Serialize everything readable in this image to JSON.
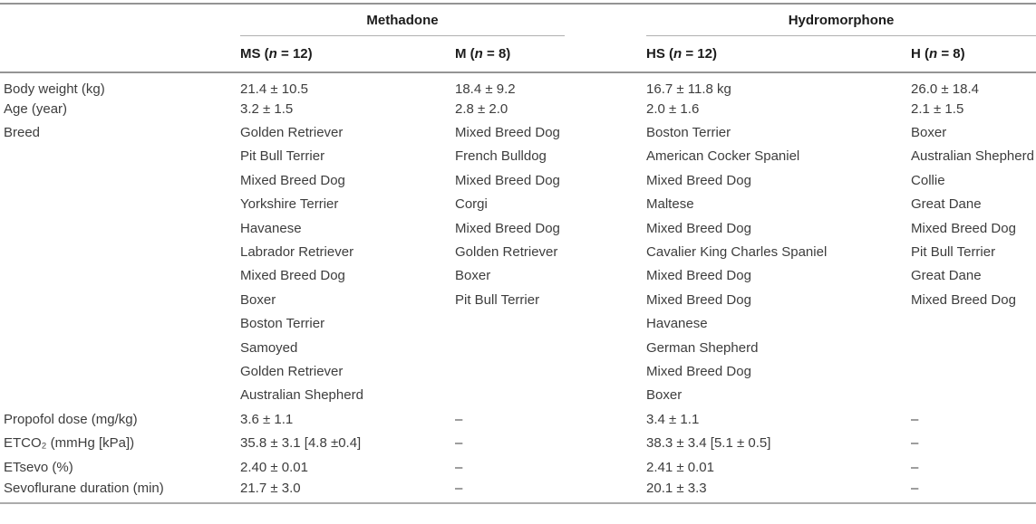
{
  "header": {
    "groups": [
      {
        "name": "Methadone"
      },
      {
        "name": "Hydromorphone"
      }
    ],
    "columns": [
      {
        "prefix": "MS (",
        "it": "n",
        "suffix": " = 12)"
      },
      {
        "prefix": "M (",
        "it": "n",
        "suffix": " = 8)"
      },
      {
        "prefix": "HS (",
        "it": "n",
        "suffix": " = 12)"
      },
      {
        "prefix": "H (",
        "it": "n",
        "suffix": " = 8)"
      }
    ]
  },
  "rows": [
    {
      "label": "Body weight (kg)",
      "values": [
        "21.4 ± 10.5",
        "18.4 ± 9.2",
        "16.7 ± 11.8 kg",
        "26.0 ± 18.4"
      ]
    },
    {
      "label": "Age (year)",
      "values": [
        "3.2 ± 1.5",
        "2.8 ± 2.0",
        "2.0 ± 1.6",
        "2.1 ± 1.5"
      ]
    },
    {
      "label": "Breed",
      "values": [
        "Golden Retriever",
        "Mixed Breed Dog",
        "Boston Terrier",
        "Boxer"
      ]
    },
    {
      "label": "",
      "values": [
        "Pit Bull Terrier",
        "French Bulldog",
        "American Cocker Spaniel",
        "Australian Shepherd"
      ]
    },
    {
      "label": "",
      "values": [
        "Mixed Breed Dog",
        "Mixed Breed Dog",
        "Mixed Breed Dog",
        "Collie"
      ]
    },
    {
      "label": "",
      "values": [
        "Yorkshire Terrier",
        "Corgi",
        "Maltese",
        "Great Dane"
      ]
    },
    {
      "label": "",
      "values": [
        "Havanese",
        "Mixed Breed Dog",
        "Mixed Breed Dog",
        "Mixed Breed Dog"
      ]
    },
    {
      "label": "",
      "values": [
        "Labrador Retriever",
        "Golden Retriever",
        "Cavalier King Charles Spaniel",
        "Pit Bull Terrier"
      ]
    },
    {
      "label": "",
      "values": [
        "Mixed Breed Dog",
        "Boxer",
        "Mixed Breed Dog",
        "Great Dane"
      ]
    },
    {
      "label": "",
      "values": [
        "Boxer",
        "Pit Bull Terrier",
        "Mixed Breed Dog",
        "Mixed Breed Dog"
      ]
    },
    {
      "label": "",
      "values": [
        "Boston Terrier",
        "",
        "Havanese",
        ""
      ]
    },
    {
      "label": "",
      "values": [
        "Samoyed",
        "",
        "German Shepherd",
        ""
      ]
    },
    {
      "label": "",
      "values": [
        "Golden Retriever",
        "",
        "Mixed Breed Dog",
        ""
      ]
    },
    {
      "label": "",
      "values": [
        "Australian Shepherd",
        "",
        "Boxer",
        ""
      ]
    },
    {
      "label": "Propofol dose (mg/kg)",
      "values": [
        "3.6 ± 1.1",
        "–",
        "3.4 ± 1.1",
        "–"
      ]
    },
    {
      "label": "ETCO₂ (mmHg [kPa])",
      "values": [
        "35.8 ± 3.1 [4.8 ±0.4]",
        "–",
        "38.3 ± 3.4 [5.1 ± 0.5]",
        "–"
      ]
    },
    {
      "label": "ETsevo (%)",
      "values": [
        "2.40 ± 0.01",
        "–",
        "2.41 ± 0.01",
        "–"
      ]
    },
    {
      "label": "Sevoflurane duration (min)",
      "values": [
        "21.7 ± 3.0",
        "–",
        "20.1 ± 3.3",
        "–"
      ]
    }
  ]
}
